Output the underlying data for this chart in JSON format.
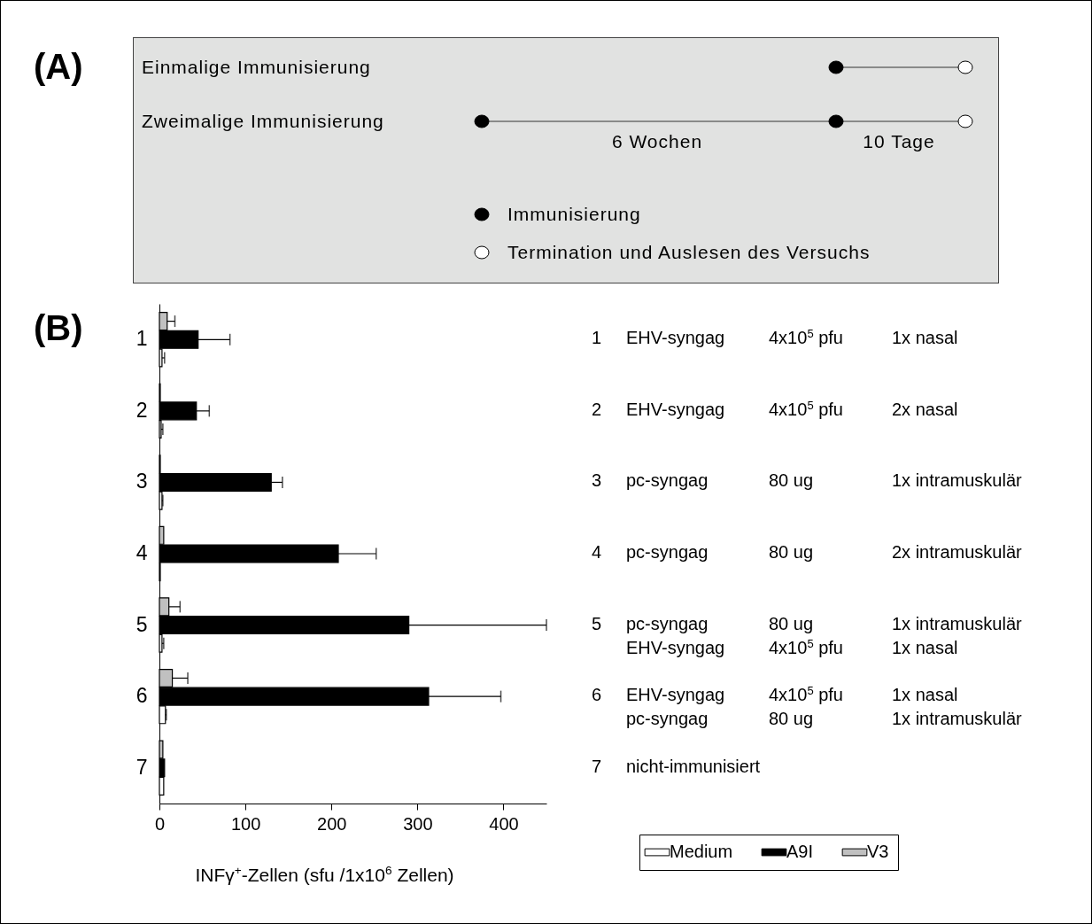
{
  "chart_data": [
    {
      "type": "other",
      "annotations": [
        "(A)",
        "Einmalige Immunisierung",
        "Zweimalige Immunisierung",
        "6 Wochen",
        "10 Tage",
        "Immunisierung",
        "Termination und Auslesen des Versuchs"
      ]
    },
    {
      "type": "bar",
      "orientation": "horizontal",
      "xlabel": "INFγ$^{+}$-Zellen (sfu /1x10$^{6}$ Zellen)",
      "categories": [
        "1",
        "2",
        "3",
        "4",
        "5",
        "6",
        "7"
      ],
      "xlim": [
        0,
        450
      ],
      "xticks": [
        0,
        100,
        200,
        300,
        400
      ],
      "grid": false,
      "legend": "bottom right",
      "series": [
        {
          "name": "Medium",
          "color": "#ffffff",
          "values": [
            3,
            2,
            3,
            1,
            3,
            7,
            5
          ],
          "errors": [
            [
              3,
              6
            ],
            [
              2,
              4
            ],
            [
              3,
              4
            ],
            null,
            [
              3,
              5
            ],
            [
              7,
              8
            ],
            null
          ]
        },
        {
          "name": "A9I",
          "color": "#000000",
          "values": [
            45,
            43,
            130,
            208,
            290,
            313,
            6
          ],
          "errors": [
            [
              45,
              82
            ],
            [
              43,
              58
            ],
            [
              130,
              143
            ],
            [
              208,
              252
            ],
            [
              290,
              450
            ],
            [
              313,
              397
            ],
            null
          ]
        },
        {
          "name": "V3",
          "color": "#c0c0c0",
          "values": [
            9,
            1,
            1,
            5,
            11,
            15,
            4
          ],
          "errors": [
            [
              9,
              18
            ],
            null,
            null,
            null,
            [
              11,
              24
            ],
            [
              15,
              33
            ],
            null
          ]
        }
      ],
      "annotations": [
        "(B)",
        "1\tEHV-syngag\t4x10$^{5}$ pfu\t1x nasal",
        "2\tEHV-syngag\t4x10$^{5}$ pfu\t2x nasal",
        "3\tpc-syngag\t80 ug\t1x intramuskulär",
        "4\tpc-syngag\t80 ug\t2x intramuskulär",
        "5\tpc-syngag\t80 ug\t1x intramuskulär",
        "\tEHV-syngag\t4x10$^{5}$ pfu\t1x nasal",
        "6\tEHV-syngag\t4x10$^{5}$ pfu\t1x nasal",
        "\tpc-syngag\t80 ug\t1x intramuskulär",
        "7\tnicht-immunisiert"
      ]
    }
  ]
}
